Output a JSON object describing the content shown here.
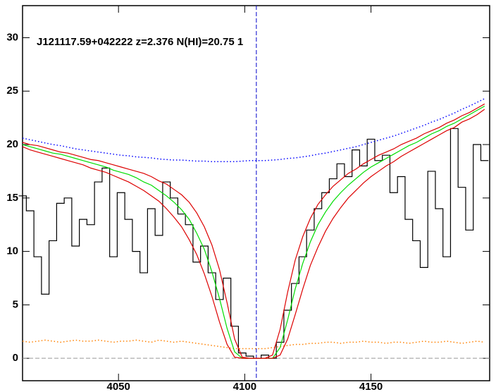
{
  "chart_data": {
    "type": "line",
    "title": "J121117.59+042222 z=2.376 N(HI)=20.75 1",
    "x": [
      4012,
      4015,
      4018,
      4021,
      4024,
      4027,
      4030,
      4033,
      4036,
      4039,
      4042,
      4045,
      4048,
      4051,
      4054,
      4057,
      4060,
      4063,
      4066,
      4069,
      4072,
      4075,
      4078,
      4081,
      4084,
      4087,
      4090,
      4093,
      4096,
      4099,
      4102,
      4105,
      4108,
      4111,
      4114,
      4117,
      4120,
      4123,
      4126,
      4129,
      4132,
      4135,
      4138,
      4141,
      4144,
      4147,
      4150,
      4153,
      4156,
      4159,
      4162,
      4165,
      4168,
      4171,
      4174,
      4177,
      4180,
      4183,
      4186,
      4189,
      4192,
      4195
    ],
    "series": [
      {
        "color": "#000000",
        "style": "step",
        "values": [
          15.2,
          13.8,
          9.5,
          6.0,
          11.0,
          14.5,
          15.0,
          10.5,
          13.0,
          12.5,
          16.5,
          17.8,
          9.5,
          15.5,
          13.0,
          10.0,
          8.0,
          14.0,
          11.5,
          16.5,
          15.0,
          13.5,
          12.5,
          9.0,
          10.5,
          8.0,
          5.5,
          7.5,
          3.0,
          0.5,
          0.2,
          0.0,
          0.3,
          0.0,
          1.5,
          4.5,
          7.0,
          9.5,
          12.0,
          14.0,
          15.5,
          16.8,
          18.2,
          17.0,
          19.5,
          18.0,
          20.5,
          18.5,
          19.0,
          15.5,
          17.0,
          13.0,
          11.0,
          8.5,
          17.5,
          14.0,
          9.5,
          21.5,
          16.0,
          12.0,
          20.0,
          18.5
        ]
      },
      {
        "color": "#0000ff",
        "style": "dotted",
        "values": [
          20.6,
          20.45,
          20.3,
          20.15,
          20.0,
          19.9,
          19.75,
          19.6,
          19.5,
          19.4,
          19.3,
          19.2,
          19.1,
          19.0,
          18.95,
          18.85,
          18.8,
          18.75,
          18.65,
          18.6,
          18.55,
          18.55,
          18.5,
          18.45,
          18.45,
          18.4,
          18.4,
          18.4,
          18.4,
          18.45,
          18.5,
          18.5,
          18.5,
          18.55,
          18.6,
          18.7,
          18.75,
          18.85,
          18.95,
          19.1,
          19.2,
          19.35,
          19.5,
          19.65,
          19.8,
          20.0,
          20.2,
          20.4,
          20.6,
          20.8,
          21.05,
          21.3,
          21.55,
          21.8,
          22.1,
          22.35,
          22.65,
          22.95,
          23.3,
          23.6,
          23.95,
          24.3
        ]
      },
      {
        "color": "#ff8000",
        "style": "dotted",
        "values": [
          1.6,
          1.5,
          1.6,
          1.7,
          1.6,
          1.5,
          1.6,
          1.7,
          1.6,
          1.6,
          1.7,
          1.6,
          1.5,
          1.6,
          1.6,
          1.7,
          1.6,
          1.5,
          1.7,
          1.6,
          1.5,
          1.6,
          1.5,
          1.4,
          1.3,
          1.2,
          1.1,
          1.0,
          0.9,
          0.9,
          0.9,
          0.9,
          0.9,
          1.0,
          1.1,
          1.2,
          1.3,
          1.3,
          1.4,
          1.4,
          1.5,
          1.5,
          1.4,
          1.5,
          1.5,
          1.6,
          1.5,
          1.5,
          1.4,
          1.5,
          1.5,
          1.4,
          1.5,
          1.6,
          1.5,
          1.5,
          1.6,
          1.5,
          1.4,
          1.5,
          1.6,
          1.5
        ]
      },
      {
        "color": "#00dd00",
        "style": "solid",
        "values": [
          20.0,
          19.8,
          19.6,
          19.4,
          19.2,
          19.1,
          18.9,
          18.7,
          18.5,
          18.3,
          18.1,
          17.9,
          17.6,
          17.4,
          17.2,
          16.9,
          16.5,
          16.2,
          15.7,
          15.2,
          14.6,
          13.9,
          13.0,
          11.7,
          10.2,
          8.1,
          5.6,
          2.8,
          0.6,
          0,
          0,
          0,
          0,
          0,
          1.0,
          3.6,
          6.5,
          8.9,
          10.9,
          12.5,
          13.7,
          14.7,
          15.5,
          16.2,
          16.8,
          17.4,
          17.9,
          18.3,
          18.7,
          19.1,
          19.5,
          19.9,
          20.2,
          20.6,
          21.0,
          21.3,
          21.7,
          22.0,
          22.4,
          22.8,
          23.2,
          23.6
        ]
      },
      {
        "color": "#dd0000",
        "style": "solid",
        "values": [
          20.2,
          20.0,
          19.9,
          19.7,
          19.5,
          19.3,
          19.2,
          19.0,
          18.8,
          18.6,
          18.5,
          18.3,
          18.1,
          17.9,
          17.7,
          17.5,
          17.3,
          17.0,
          16.6,
          16.3,
          15.8,
          15.3,
          14.6,
          13.6,
          12.3,
          10.6,
          8.3,
          5.2,
          1.8,
          0.1,
          0,
          0,
          0,
          0.3,
          2.7,
          6.2,
          9.2,
          11.4,
          13.1,
          14.4,
          15.3,
          16.1,
          16.7,
          17.3,
          17.7,
          18.2,
          18.6,
          19.0,
          19.3,
          19.6,
          20.0,
          20.3,
          20.6,
          21.0,
          21.3,
          21.6,
          22.0,
          22.3,
          22.7,
          23.0,
          23.4,
          23.8
        ]
      },
      {
        "color": "#dd0000",
        "style": "solid",
        "values": [
          19.8,
          19.5,
          19.3,
          19.1,
          18.9,
          18.7,
          18.5,
          18.3,
          18.1,
          17.8,
          17.6,
          17.4,
          17.1,
          16.8,
          16.5,
          16.1,
          15.7,
          15.2,
          14.7,
          14.0,
          13.2,
          12.3,
          11.1,
          9.7,
          7.9,
          5.8,
          3.4,
          1.3,
          0.1,
          0,
          0,
          0,
          0,
          0,
          0.3,
          1.8,
          4.1,
          6.5,
          8.7,
          10.4,
          11.9,
          13.1,
          14.1,
          15.0,
          15.7,
          16.4,
          17.0,
          17.5,
          18.0,
          18.4,
          18.9,
          19.3,
          19.7,
          20.1,
          20.5,
          20.9,
          21.3,
          21.6,
          22.1,
          22.4,
          22.8,
          23.3
        ]
      }
    ],
    "hline": {
      "y": 0,
      "color": "#999999"
    },
    "vline": {
      "x": 4104.6,
      "color": "#0000cc"
    },
    "xlim": [
      4012,
      4197
    ],
    "ylim": [
      -2.1,
      33
    ],
    "xticks": [
      4050,
      4100,
      4150
    ],
    "yticks": [
      0,
      5,
      10,
      15,
      20,
      25,
      30
    ]
  }
}
